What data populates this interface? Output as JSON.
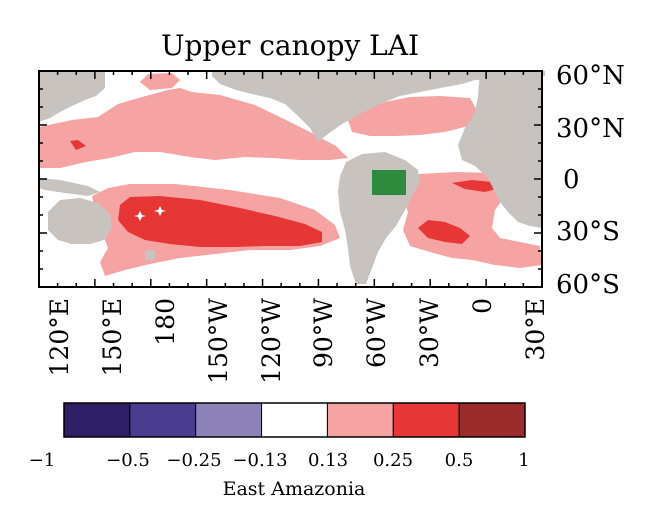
{
  "title": "Upper canopy LAI",
  "lat_labels": [
    "60°N",
    "30°N",
    "0",
    "30°S",
    "60°S"
  ],
  "lon_labels": [
    "120°E",
    "150°E",
    "180",
    "150°W",
    "120°W",
    "90°W",
    "60°W",
    "30°W",
    "0",
    "30°E"
  ],
  "colorbar": {
    "caption": "East Amazonia",
    "colors": [
      "#2e1f66",
      "#4a3d8f",
      "#8e82bb",
      "#ffffff",
      "#f5a3a3",
      "#e63636",
      "#9b2a2a"
    ],
    "tick_labels": [
      "−1",
      "−0.5",
      "−0.25",
      "−0.13",
      "0.13",
      "0.25",
      "0.5",
      "1"
    ]
  },
  "legend_colors": {
    "land": "#c8c3be",
    "weak_positive": "#f5a3a3",
    "strong_positive": "#e63636",
    "forcing_region": "#2e8b3e",
    "significance_marker": "#ffffff"
  }
}
